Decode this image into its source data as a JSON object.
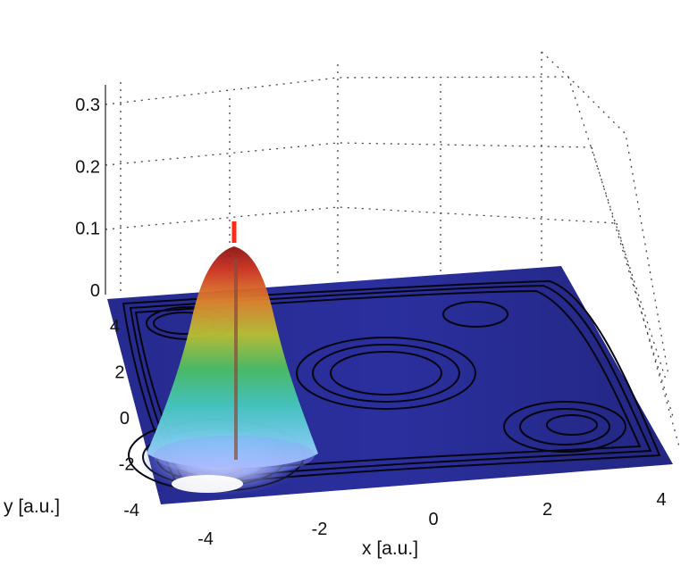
{
  "chart_data": {
    "type": "surface",
    "description_free": true,
    "xlabel": "x [a.u.]",
    "ylabel": "y [a.u.]",
    "zlabel": "",
    "x_ticks": [
      "-4",
      "-2",
      "0",
      "2",
      "4"
    ],
    "y_ticks": [
      "-4",
      "-2",
      "0",
      "2",
      "4"
    ],
    "z_ticks": [
      "0",
      "0.1",
      "0.2",
      "0.3"
    ],
    "xlim": [
      -5,
      5
    ],
    "ylim": [
      -5,
      5
    ],
    "zlim": [
      0,
      0.35
    ],
    "grid": true,
    "colormap": "jet",
    "surface_peak": {
      "x": -3.5,
      "y": -3.0,
      "z": 0.25
    },
    "spike": {
      "x": -3.5,
      "y": -3.0,
      "z_top": 0.12
    },
    "floor_color": "#2a2f9e",
    "contour_color": "#050510"
  }
}
